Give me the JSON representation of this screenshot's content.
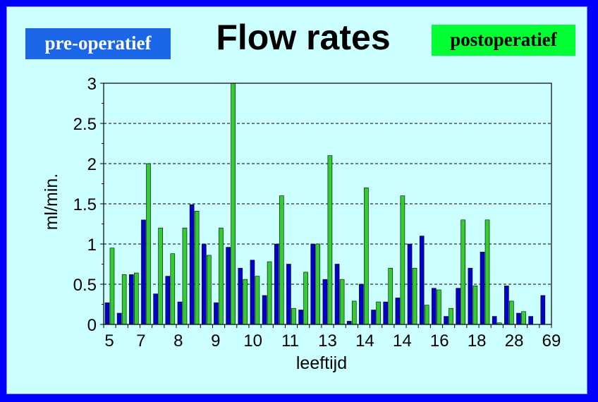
{
  "chart_data": {
    "type": "bar",
    "title": "Flow rates",
    "xlabel": "leeftijd",
    "ylabel": "ml/min.",
    "ylim": [
      0,
      3
    ],
    "yticks": [
      "0",
      "0.5",
      "1",
      "1.5",
      "2",
      "2.5",
      "3"
    ],
    "grid": true,
    "x_tick_labels": [
      "5",
      "7",
      "8",
      "9",
      "10",
      "11",
      "13",
      "14",
      "14",
      "16",
      "18",
      "28",
      "69"
    ],
    "series": [
      {
        "name": "pre-operatief",
        "color": "#0000cc",
        "values": [
          0.27,
          0.14,
          0.62,
          1.3,
          0.38,
          0.6,
          0.28,
          1.49,
          1.0,
          0.27,
          0.96,
          0.7,
          0.8,
          0.36,
          1.0,
          0.75,
          0.18,
          1.0,
          0.56,
          0.75,
          0.04,
          0.5,
          0.18,
          0.28,
          0.33,
          1.0,
          1.1,
          0.45,
          0.1,
          0.45,
          0.7,
          0.9,
          0.1,
          0.48,
          0.14,
          0.1,
          0.36
        ]
      },
      {
        "name": "postoperatief",
        "color": "#33cc33",
        "values": [
          0.95,
          0.62,
          0.64,
          2.0,
          1.2,
          0.88,
          1.2,
          1.41,
          0.86,
          1.2,
          3.0,
          0.56,
          0.6,
          0.78,
          1.6,
          0.2,
          0.65,
          1.0,
          2.1,
          0.56,
          0.29,
          1.7,
          0.28,
          0.7,
          1.6,
          0.7,
          0.24,
          0.43,
          0.2,
          1.3,
          0.48,
          1.3,
          0.02,
          0.29,
          0.16,
          0.0,
          0.0
        ]
      }
    ]
  }
}
